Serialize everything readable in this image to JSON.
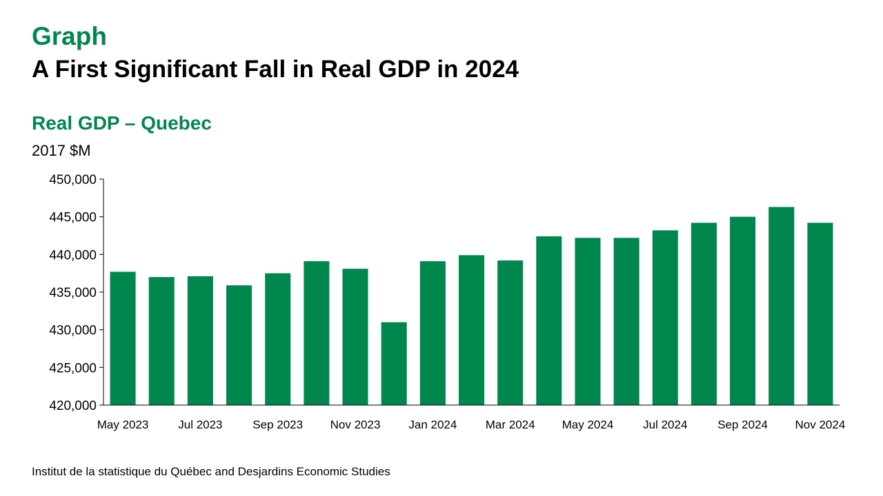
{
  "header": {
    "kicker": "Graph",
    "headline": "A First Significant Fall in Real GDP in 2024"
  },
  "footer": {
    "source": "Institut de la statistique du Québec and Desjardins Economic Studies"
  },
  "colors": {
    "accent": "#00874d",
    "bar": "#00874d"
  },
  "chart_data": {
    "type": "bar",
    "title": "Real GDP – Quebec",
    "ylabel": "2017 $M",
    "xlabel": "",
    "ylim": [
      420000,
      450000
    ],
    "yticks": [
      420000,
      425000,
      430000,
      435000,
      440000,
      445000,
      450000
    ],
    "ytick_labels": [
      "420,000",
      "425,000",
      "430,000",
      "435,000",
      "440,000",
      "445,000",
      "450,000"
    ],
    "categories": [
      "May 2023",
      "Jun 2023",
      "Jul 2023",
      "Aug 2023",
      "Sep 2023",
      "Oct 2023",
      "Nov 2023",
      "Dec 2023",
      "Jan 2024",
      "Feb 2024",
      "Mar 2024",
      "Apr 2024",
      "May 2024",
      "Jun 2024",
      "Jul 2024",
      "Aug 2024",
      "Sep 2024",
      "Oct 2024",
      "Nov 2024"
    ],
    "xtick_labels": [
      "May 2023",
      "",
      "Jul 2023",
      "",
      "Sep 2023",
      "",
      "Nov 2023",
      "",
      "Jan 2024",
      "",
      "Mar 2024",
      "",
      "May 2024",
      "",
      "Jul 2024",
      "",
      "Sep 2024",
      "",
      "Nov 2024"
    ],
    "values": [
      437700,
      437000,
      437100,
      435900,
      437500,
      439100,
      438100,
      431000,
      439100,
      439900,
      439200,
      442400,
      442200,
      442200,
      443200,
      444200,
      445000,
      446300,
      444200
    ],
    "grid": false,
    "legend": "none"
  }
}
